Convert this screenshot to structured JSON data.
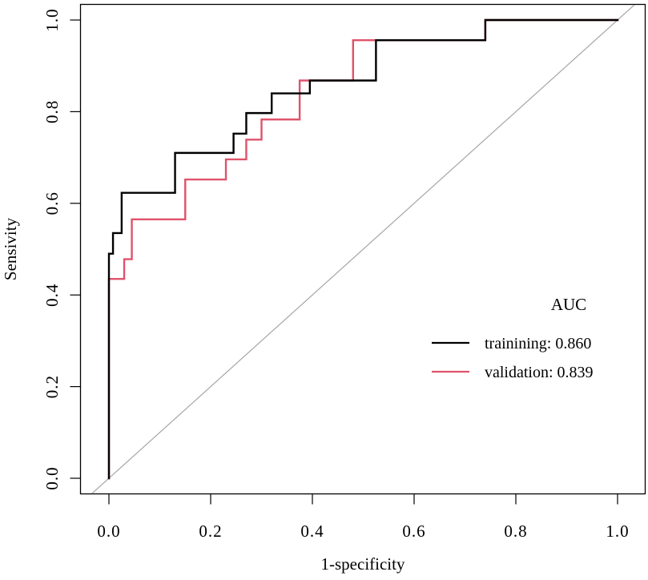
{
  "chart_data": {
    "type": "line",
    "title": "",
    "xlabel": "1-specificity",
    "ylabel": "Sensivity",
    "xlim": [
      0,
      1
    ],
    "ylim": [
      0,
      1
    ],
    "x_ticks": [
      "0.0",
      "0.2",
      "0.4",
      "0.6",
      "0.8",
      "1.0"
    ],
    "y_ticks": [
      "0.0",
      "0.2",
      "0.4",
      "0.6",
      "0.8",
      "1.0"
    ],
    "grid": false,
    "reference_line": {
      "from": [
        0,
        0
      ],
      "to": [
        1,
        1
      ],
      "color": "#a6a6a6"
    },
    "legend": {
      "title": "AUC",
      "placement": "right",
      "entries": [
        {
          "label": "trainining: 0.860",
          "color": "#000000"
        },
        {
          "label": "validation: 0.839",
          "color": "#df536b"
        }
      ]
    },
    "series": [
      {
        "name": "trainining",
        "auc": 0.86,
        "color": "#000000",
        "points": [
          [
            0.0,
            0.0
          ],
          [
            0.0,
            0.44
          ],
          [
            0.0,
            0.49
          ],
          [
            0.008,
            0.49
          ],
          [
            0.008,
            0.535
          ],
          [
            0.025,
            0.535
          ],
          [
            0.025,
            0.623
          ],
          [
            0.13,
            0.623
          ],
          [
            0.13,
            0.71
          ],
          [
            0.245,
            0.71
          ],
          [
            0.245,
            0.752
          ],
          [
            0.27,
            0.752
          ],
          [
            0.27,
            0.797
          ],
          [
            0.32,
            0.797
          ],
          [
            0.32,
            0.84
          ],
          [
            0.395,
            0.84
          ],
          [
            0.395,
            0.868
          ],
          [
            0.525,
            0.868
          ],
          [
            0.525,
            0.956
          ],
          [
            0.74,
            0.956
          ],
          [
            0.74,
            1.0
          ],
          [
            1.0,
            1.0
          ]
        ]
      },
      {
        "name": "validation",
        "auc": 0.839,
        "color": "#df536b",
        "points": [
          [
            0.0,
            0.0
          ],
          [
            0.0,
            0.435
          ],
          [
            0.03,
            0.435
          ],
          [
            0.03,
            0.478
          ],
          [
            0.045,
            0.478
          ],
          [
            0.045,
            0.565
          ],
          [
            0.15,
            0.565
          ],
          [
            0.15,
            0.652
          ],
          [
            0.23,
            0.652
          ],
          [
            0.23,
            0.696
          ],
          [
            0.27,
            0.696
          ],
          [
            0.27,
            0.739
          ],
          [
            0.3,
            0.739
          ],
          [
            0.3,
            0.783
          ],
          [
            0.375,
            0.783
          ],
          [
            0.375,
            0.868
          ],
          [
            0.48,
            0.868
          ],
          [
            0.48,
            0.956
          ],
          [
            0.74,
            0.956
          ],
          [
            0.74,
            1.0
          ],
          [
            1.0,
            1.0
          ]
        ]
      }
    ]
  }
}
